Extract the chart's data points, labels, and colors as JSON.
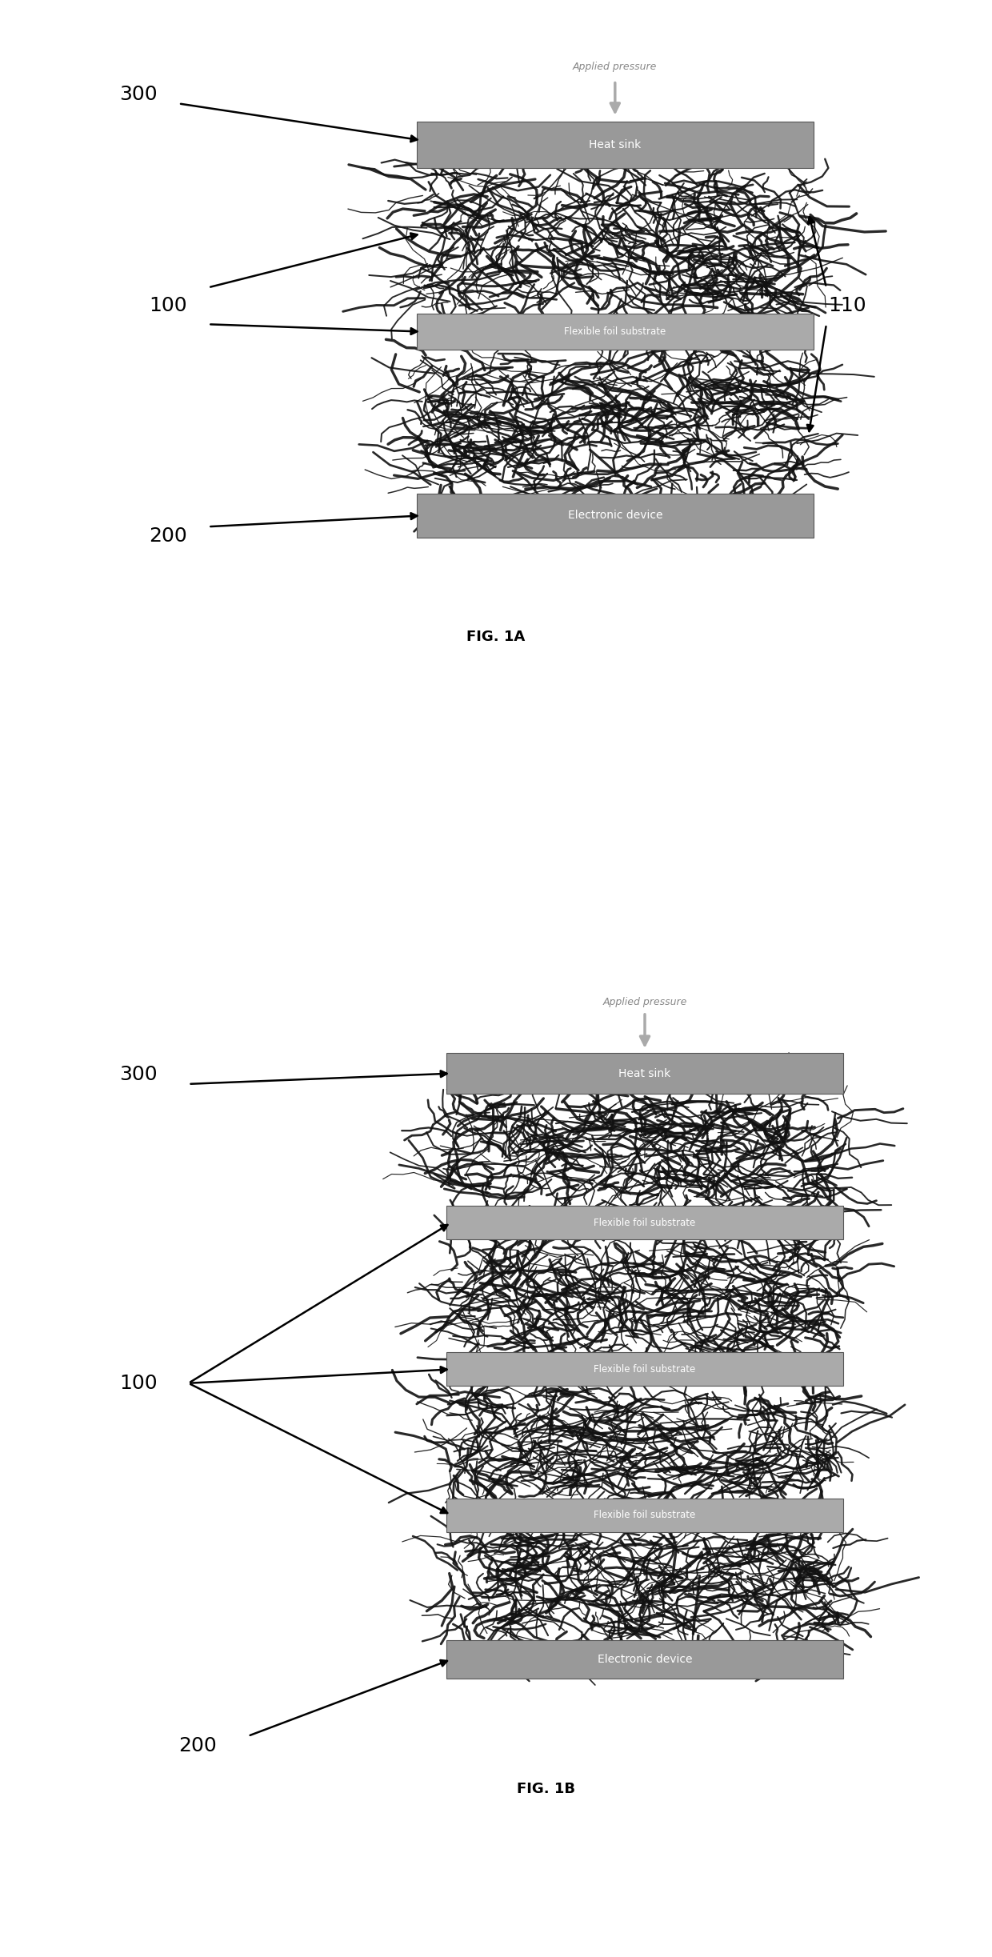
{
  "fig_width": 12.4,
  "fig_height": 24.46,
  "bg_color": "#ffffff",
  "label_fontsize": 18,
  "title_fontsize": 13,
  "fig1a": {
    "title": "FIG. 1A",
    "heat_sink_label": "Heat sink",
    "flexible_foil_label": "Flexible foil substrate",
    "electronic_device_label": "Electronic device",
    "applied_pressure_label": "Applied pressure",
    "label_300": "300",
    "label_100": "100",
    "label_110": "110",
    "label_200": "200",
    "heat_sink_color": "#999999",
    "flexible_foil_color": "#aaaaaa",
    "electronic_device_color": "#999999"
  },
  "fig1b": {
    "title": "FIG. 1B",
    "heat_sink_label": "Heat sink",
    "flexible_foil_label": "Flexible foil substrate",
    "electronic_device_label": "Electronic device",
    "applied_pressure_label": "Applied pressure",
    "label_300": "300",
    "label_100": "100",
    "label_200": "200",
    "heat_sink_color": "#999999",
    "flexible_foil_color": "#aaaaaa",
    "electronic_device_color": "#999999"
  }
}
